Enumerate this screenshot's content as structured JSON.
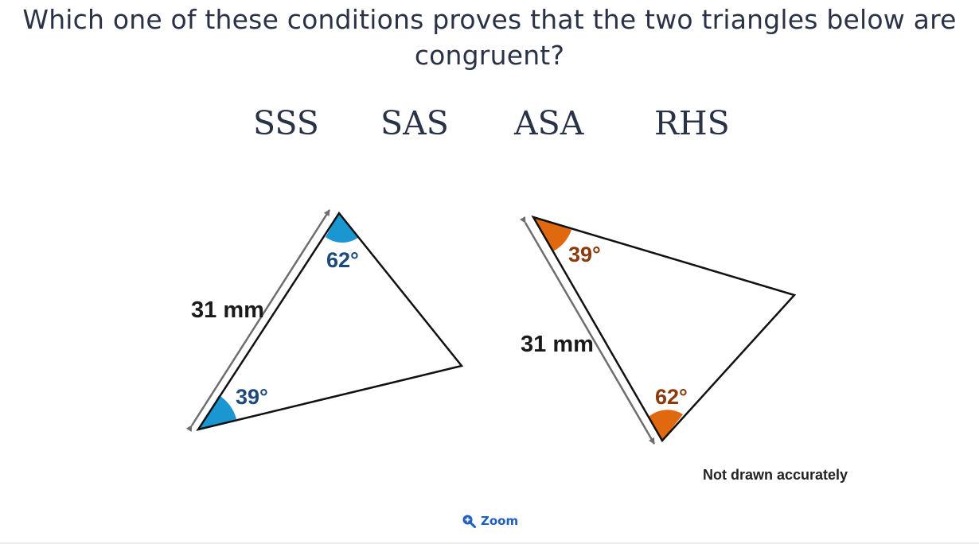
{
  "question": {
    "line1": "Which one of these conditions proves that the two triangles below are",
    "line2": "congruent?"
  },
  "options": [
    "SSS",
    "SAS",
    "ASA",
    "RHS"
  ],
  "figure": {
    "left_triangle": {
      "side_label": "31 mm",
      "top_angle_label": "62°",
      "bottom_angle_label": "39°",
      "angle_color": "#1a97d1",
      "label_color": "#1d4a7a"
    },
    "right_triangle": {
      "side_label": "31 mm",
      "top_angle_label": "39°",
      "bottom_angle_label": "62°",
      "angle_color": "#e0690f",
      "label_color": "#8b3a0b"
    },
    "note": "Not drawn accurately"
  },
  "zoom": {
    "label": "Zoom",
    "icon": "zoom-in-icon",
    "color": "#1f5fbf"
  }
}
